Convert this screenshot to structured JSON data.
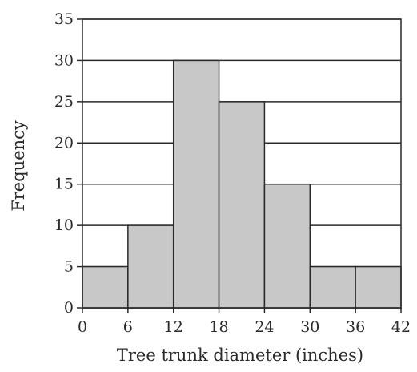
{
  "chart_data": {
    "type": "bar",
    "subtype": "histogram",
    "xlabel": "Tree trunk diameter (inches)",
    "ylabel": "Frequency",
    "bin_edges": [
      0,
      6,
      12,
      18,
      24,
      30,
      36,
      42
    ],
    "x_ticks": [
      0,
      6,
      12,
      18,
      24,
      30,
      36,
      42
    ],
    "values": [
      5,
      10,
      30,
      25,
      15,
      5,
      5
    ],
    "y_ticks": [
      0,
      5,
      10,
      15,
      20,
      25,
      30,
      35
    ],
    "xlim": [
      0,
      42
    ],
    "ylim": [
      0,
      35
    ],
    "grid": "horizontal",
    "legend": "none",
    "colors": {
      "bar_fill": "#c8c8c8",
      "bar_stroke": "#2a2a2a",
      "grid": "#2a2a2a",
      "text": "#2a2a2a"
    }
  }
}
